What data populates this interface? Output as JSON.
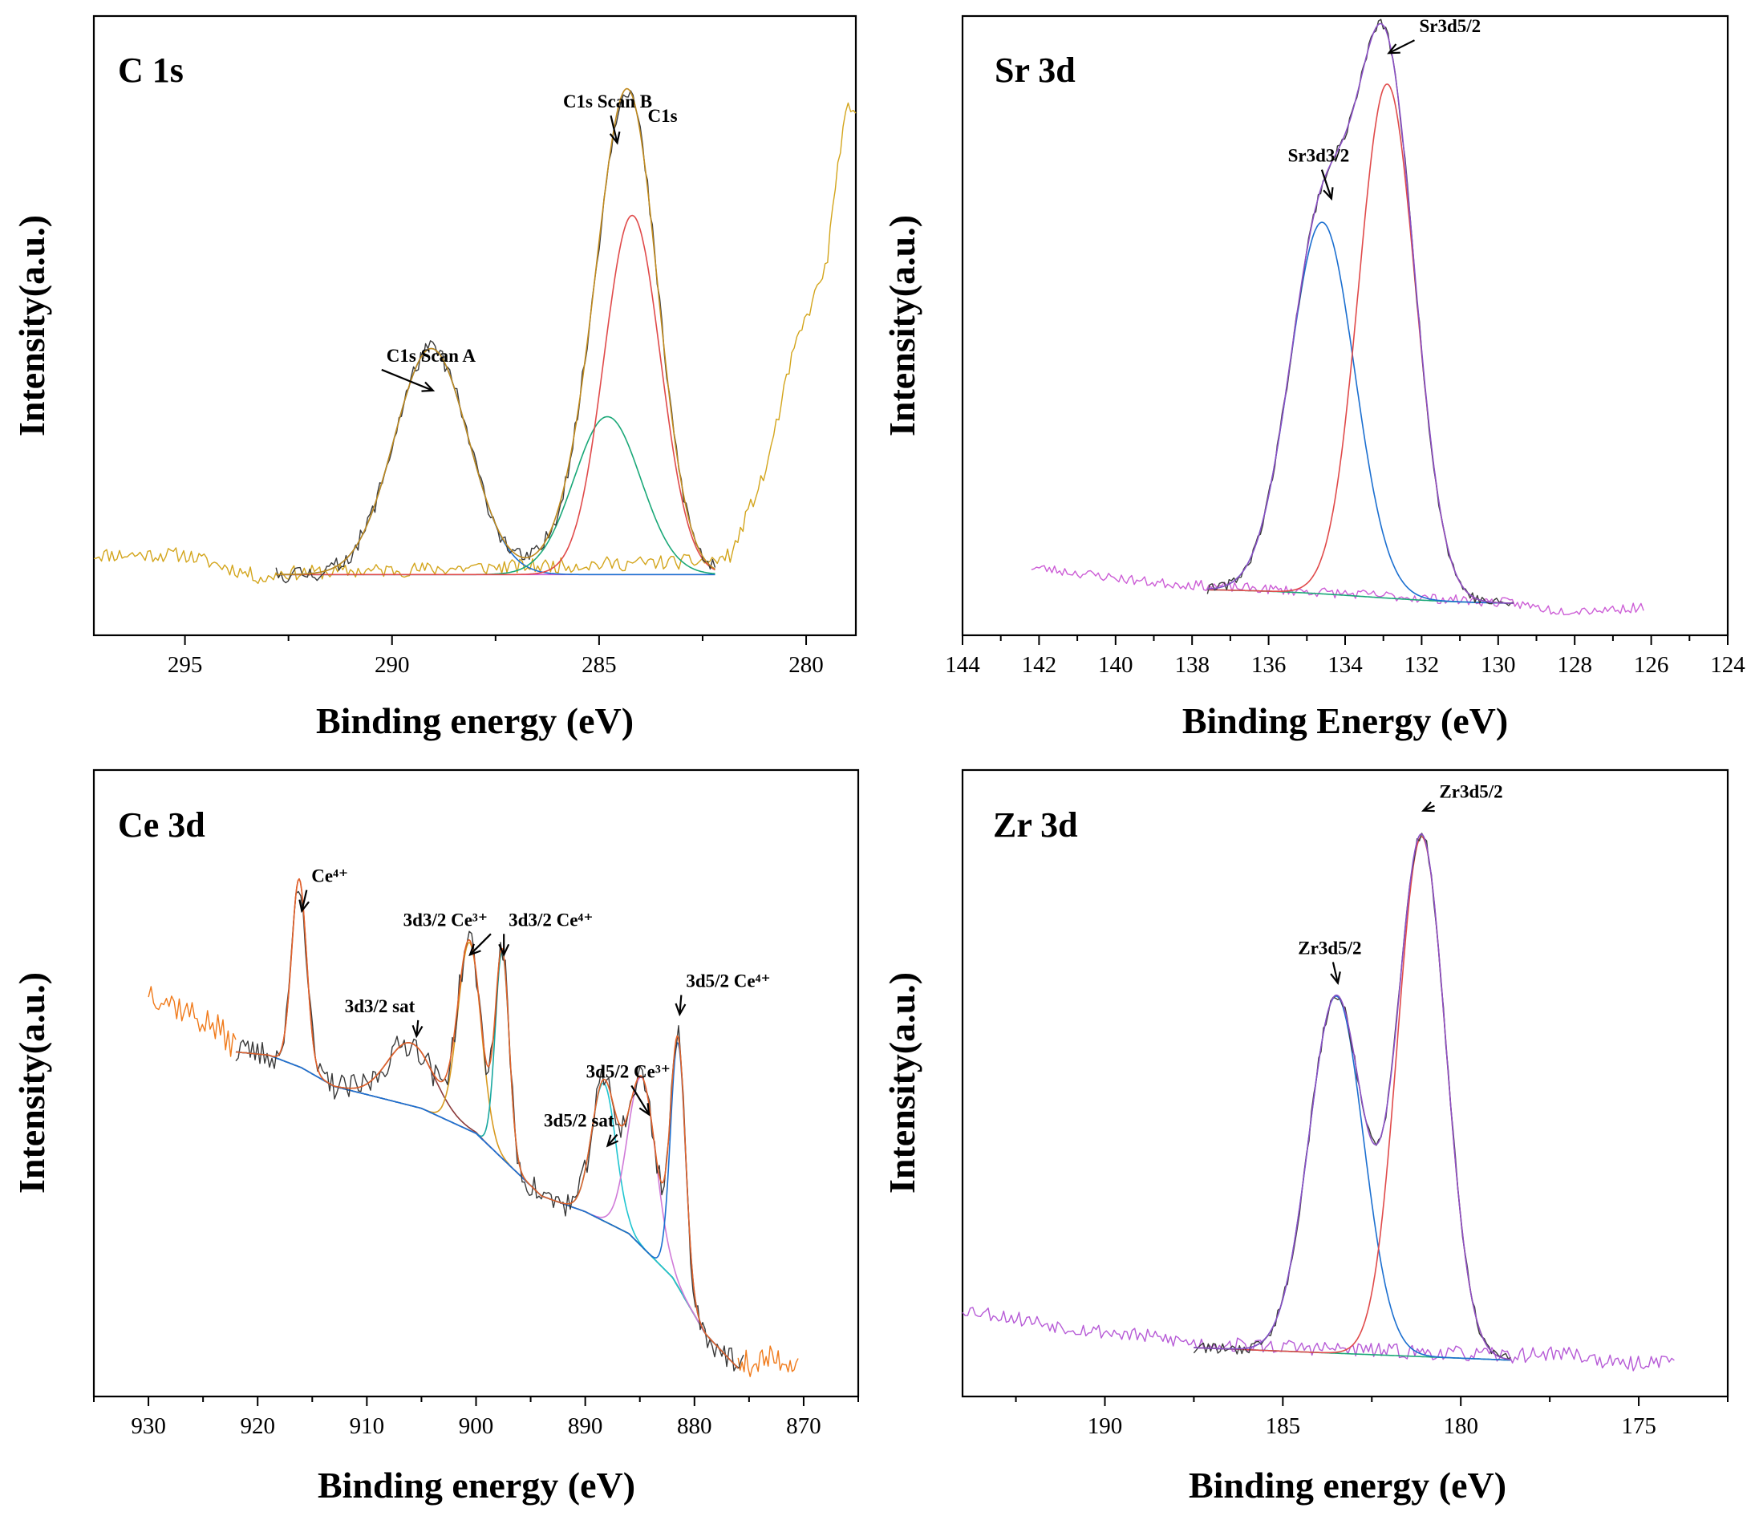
{
  "chart_data": [
    {
      "id": "c1s",
      "type": "line",
      "title": "C 1s",
      "xlabel": "Binding energy (eV)",
      "ylabel": "Intensity(a.u.)",
      "x_reversed": true,
      "xlim": [
        297.2,
        278.8
      ],
      "ylim": [
        0,
        1
      ],
      "xticks": [
        295,
        290,
        285,
        280
      ],
      "x_tick_labels": [
        "295",
        "290",
        "285",
        "280"
      ],
      "minor_step": 2.5,
      "fit_range": [
        292.8,
        282.2
      ],
      "noise_seed": 11,
      "raw_range": [
        292.8,
        282.2
      ],
      "raw_color": "#3a3a3a",
      "raw_noise": 0.014,
      "background": {
        "type": "linear",
        "y_start": 0.098,
        "y_end": 0.098,
        "color": "#cc5dd6"
      },
      "components": [
        {
          "name": "C1s Scan A",
          "center": 289.05,
          "fwhm": 2.1,
          "height": 0.365,
          "color": "#1b6fd0"
        },
        {
          "name": "C1s Scan B",
          "center": 284.8,
          "fwhm": 1.9,
          "height": 0.255,
          "color": "#1aa878"
        },
        {
          "name": "C1s",
          "center": 284.2,
          "fwhm": 1.6,
          "height": 0.58,
          "color": "#e04a4a"
        }
      ],
      "envelope_color": "#c08a1e",
      "extra_lines": [
        {
          "name": "survey trace",
          "color": "#d3a51c",
          "noise": 0.012,
          "points": [
            [
              297.2,
              0.13
            ],
            [
              295,
              0.13
            ],
            [
              293,
              0.09
            ],
            [
              292.8,
              0.1
            ],
            [
              282.2,
              0.12
            ],
            [
              281.8,
              0.13
            ],
            [
              281.4,
              0.2
            ],
            [
              281,
              0.26
            ],
            [
              280.3,
              0.46
            ],
            [
              279.5,
              0.6
            ],
            [
              279.2,
              0.78
            ],
            [
              279,
              0.85
            ],
            [
              278.8,
              0.84
            ]
          ]
        }
      ],
      "annotations": [
        {
          "text": "C1s Scan A",
          "x": 289.05,
          "y": 0.39,
          "anchor": "start",
          "dx": -56,
          "dy": -40,
          "arrow": true
        },
        {
          "text": "C1s Scan B",
          "x": 284.6,
          "y": 0.79,
          "anchor": "middle",
          "dx": -10,
          "dy": -48,
          "arrow": true
        },
        {
          "text": "C1s",
          "x": 284.6,
          "y": 0.79,
          "anchor": "start",
          "dx": 40,
          "dy": -30,
          "arrow": false
        }
      ]
    },
    {
      "id": "sr3d",
      "type": "line",
      "title": "Sr 3d",
      "xlabel": "Binding Energy (eV)",
      "ylabel": "Intensity(a.u.)",
      "x_reversed": true,
      "xlim": [
        144,
        124
      ],
      "ylim": [
        0,
        1
      ],
      "xticks": [
        144,
        142,
        140,
        138,
        136,
        134,
        132,
        130,
        128,
        126,
        124
      ],
      "x_tick_labels": [
        "144",
        "142",
        "140",
        "138",
        "136",
        "134",
        "132",
        "130",
        "128",
        "126",
        "124"
      ],
      "minor_step": 1,
      "fit_range": [
        137.6,
        129.6
      ],
      "noise_seed": 23,
      "raw_range": [
        137.6,
        129.6
      ],
      "raw_color": "#3a3a3a",
      "raw_noise": 0.008,
      "background": {
        "type": "sigmoid",
        "y_start": 0.075,
        "y_end": 0.05,
        "center": 133.5,
        "width": 1.5,
        "color": "#1aa878"
      },
      "components": [
        {
          "name": "Sr3d3/2",
          "center": 134.6,
          "fwhm": 2.0,
          "height": 0.6,
          "color": "#1b6fd0"
        },
        {
          "name": "Sr3d5/2",
          "center": 132.9,
          "fwhm": 1.75,
          "height": 0.83,
          "color": "#e04a4a"
        }
      ],
      "envelope_color": "#8a4fc4",
      "extra_lines": [
        {
          "name": "wide scan",
          "color": "#cc5dd6",
          "noise": 0.008,
          "points": [
            [
              142.2,
              0.11
            ],
            [
              139,
              0.085
            ],
            [
              137.6,
              0.08
            ],
            [
              129.6,
              0.052
            ],
            [
              128.5,
              0.04
            ],
            [
              127,
              0.042
            ],
            [
              126.2,
              0.045
            ]
          ]
        }
      ],
      "annotations": [
        {
          "text": "Sr3d5/2",
          "x": 132.9,
          "y": 0.935,
          "anchor": "start",
          "dx": 40,
          "dy": -30,
          "arrow": true
        },
        {
          "text": "Sr3d3/2",
          "x": 134.4,
          "y": 0.7,
          "anchor": "middle",
          "dx": -14,
          "dy": -50,
          "arrow": true
        }
      ]
    },
    {
      "id": "ce3d",
      "type": "line",
      "title": "Ce 3d",
      "xlabel": "Binding energy (eV)",
      "ylabel": "Intensity(a.u.)",
      "x_reversed": true,
      "xlim": [
        935,
        865
      ],
      "ylim": [
        0,
        1
      ],
      "xticks": [
        930,
        920,
        910,
        900,
        890,
        880,
        870
      ],
      "x_tick_labels": [
        "930",
        "920",
        "910",
        "900",
        "890",
        "880",
        "870"
      ],
      "minor_step": 5,
      "fit_range": [
        922,
        876
      ],
      "noise_seed": 37,
      "raw_range": [
        922,
        875.5
      ],
      "raw_color": "#3a3a3a",
      "raw_noise": 0.022,
      "background": {
        "type": "polyline",
        "color": "#6b8f2a",
        "points": [
          [
            922,
            0.55
          ],
          [
            919,
            0.545
          ],
          [
            916,
            0.525
          ],
          [
            913,
            0.495
          ],
          [
            910,
            0.482
          ],
          [
            905,
            0.46
          ],
          [
            900,
            0.42
          ],
          [
            897,
            0.37
          ],
          [
            894,
            0.32
          ],
          [
            890,
            0.295
          ],
          [
            886,
            0.26
          ],
          [
            882,
            0.19
          ],
          [
            879,
            0.1
          ],
          [
            876,
            0.045
          ]
        ]
      },
      "components": [
        {
          "name": "Ce4+",
          "center": 916.2,
          "fwhm": 1.6,
          "height": 0.3,
          "color": "#e05555"
        },
        {
          "name": "3d3/2 sat",
          "center": 906.0,
          "fwhm": 5.0,
          "height": 0.1,
          "color": "#8a3a3a"
        },
        {
          "name": "3d3/2 Ce3+",
          "center": 900.6,
          "fwhm": 2.5,
          "height": 0.3,
          "color": "#d89a20"
        },
        {
          "name": "3d3/2 Ce4+",
          "center": 897.6,
          "fwhm": 1.5,
          "height": 0.33,
          "color": "#1aa8a0"
        },
        {
          "name": "3d5/2 sat",
          "center": 888.3,
          "fwhm": 2.6,
          "height": 0.22,
          "color": "#1fc5d0"
        },
        {
          "name": "3d5/2 Ce3+",
          "center": 884.8,
          "fwhm": 3.0,
          "height": 0.27,
          "color": "#d07ad8"
        },
        {
          "name": "3d5/2 Ce4+",
          "center": 881.5,
          "fwhm": 1.6,
          "height": 0.39,
          "color": "#1b6fd0"
        }
      ],
      "envelope_color": "#e0622a",
      "extra_lines": [
        {
          "name": "survey trace",
          "color": "#f07a1a",
          "noise": 0.025,
          "points": [
            [
              930,
              0.65
            ],
            [
              927,
              0.62
            ],
            [
              924,
              0.59
            ],
            [
              922,
              0.56
            ]
          ]
        },
        {
          "name": "survey trace tail",
          "color": "#f07a1a",
          "noise": 0.022,
          "points": [
            [
              876,
              0.05
            ],
            [
              873,
              0.06
            ],
            [
              870.5,
              0.055
            ]
          ]
        }
      ],
      "annotations": [
        {
          "text": "Ce⁴⁺",
          "x": 916.1,
          "y": 0.77,
          "anchor": "start",
          "dx": 14,
          "dy": -40,
          "arrow": true
        },
        {
          "text": "3d3/2 Ce³⁺",
          "x": 900.7,
          "y": 0.7,
          "anchor": "end",
          "dx": 24,
          "dy": -40,
          "arrow": true
        },
        {
          "text": "3d3/2 Ce⁴⁺",
          "x": 897.6,
          "y": 0.7,
          "anchor": "start",
          "dx": 8,
          "dy": -40,
          "arrow": true
        },
        {
          "text": "3d3/2 sat",
          "x": 905.6,
          "y": 0.57,
          "anchor": "end",
          "dx": 0,
          "dy": -34,
          "arrow": true
        },
        {
          "text": "3d5/2 Ce³⁺",
          "x": 884.3,
          "y": 0.445,
          "anchor": "middle",
          "dx": -24,
          "dy": -50,
          "arrow": true
        },
        {
          "text": "3d5/2 sat",
          "x": 888.1,
          "y": 0.395,
          "anchor": "end",
          "dx": 10,
          "dy": -28,
          "arrow": true
        },
        {
          "text": "3d5/2 Ce⁴⁺",
          "x": 881.5,
          "y": 0.605,
          "anchor": "start",
          "dx": 10,
          "dy": -38,
          "arrow": true
        }
      ]
    },
    {
      "id": "zr3d",
      "type": "line",
      "title": "Zr 3d",
      "xlabel": "Binding energy (eV)",
      "ylabel": "Intensity(a.u.)",
      "x_reversed": true,
      "xlim": [
        194,
        172.5
      ],
      "ylim": [
        0,
        1
      ],
      "xticks": [
        190,
        185,
        180,
        175
      ],
      "x_tick_labels": [
        "190",
        "185",
        "180",
        "175"
      ],
      "minor_step": 2.5,
      "fit_range": [
        187.5,
        178.6
      ],
      "noise_seed": 53,
      "raw_range": [
        187.5,
        178.6
      ],
      "raw_color": "#3a3a3a",
      "raw_noise": 0.009,
      "background": {
        "type": "linear",
        "y_start": 0.078,
        "y_end": 0.058,
        "color": "#1aa878"
      },
      "components": [
        {
          "name": "Zr3d5/2 (183.5)",
          "center": 183.5,
          "fwhm": 1.8,
          "height": 0.57,
          "color": "#1b6fd0"
        },
        {
          "name": "Zr3d5/2 (181.1)",
          "center": 181.1,
          "fwhm": 1.6,
          "height": 0.83,
          "color": "#e04a4a"
        }
      ],
      "envelope_color": "#8a4fc4",
      "extra_lines": [
        {
          "name": "wide scan",
          "color": "#b65ad6",
          "noise": 0.012,
          "points": [
            [
              194,
              0.14
            ],
            [
              191,
              0.11
            ],
            [
              188,
              0.09
            ],
            [
              187.5,
              0.085
            ],
            [
              178.6,
              0.065
            ],
            [
              177,
              0.07
            ],
            [
              175.5,
              0.05
            ],
            [
              174,
              0.06
            ]
          ]
        }
      ],
      "annotations": [
        {
          "text": "Zr3d5/2",
          "x": 181.1,
          "y": 0.93,
          "anchor": "start",
          "dx": 22,
          "dy": -20,
          "arrow": true
        },
        {
          "text": "Zr3d5/2",
          "x": 183.5,
          "y": 0.655,
          "anchor": "middle",
          "dx": -8,
          "dy": -40,
          "arrow": true
        }
      ]
    }
  ]
}
